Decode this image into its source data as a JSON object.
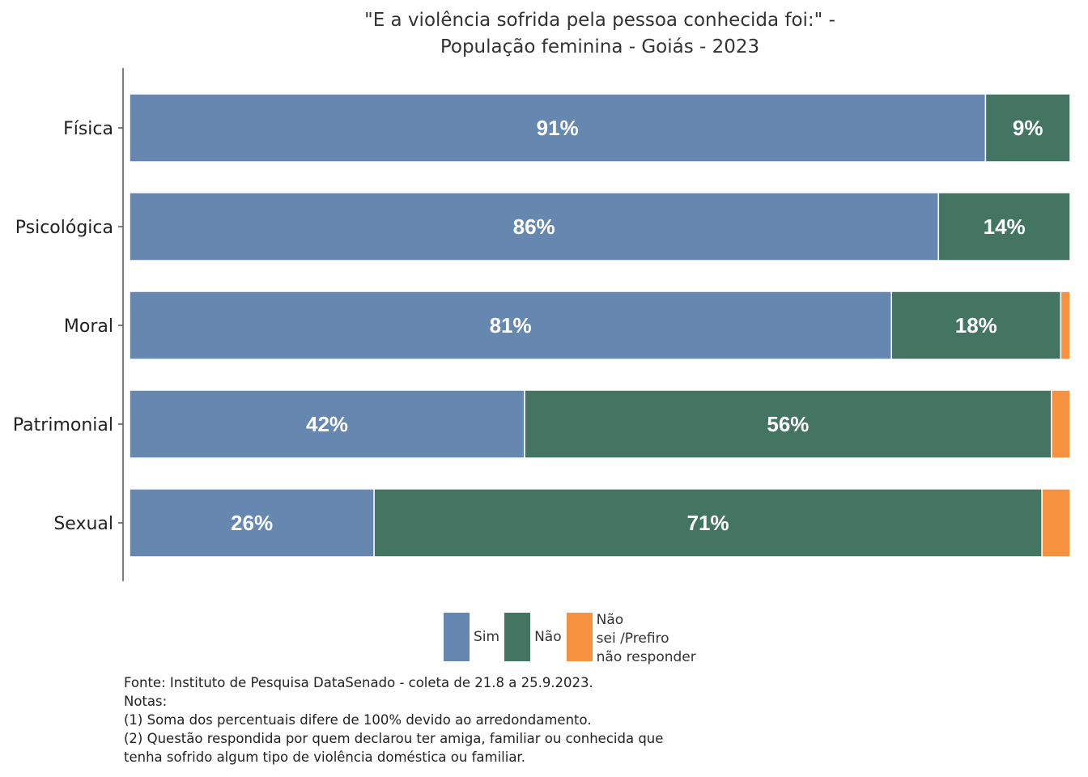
{
  "chart_data": {
    "type": "bar",
    "orientation": "horizontal",
    "stacked": true,
    "title_lines": [
      "\"E a violência sofrida pela pessoa conhecida foi:\" -",
      "População feminina - Goiás - 2023"
    ],
    "categories": [
      "Física",
      "Psicológica",
      "Moral",
      "Patrimonial",
      "Sexual"
    ],
    "series": [
      {
        "name": "Sim",
        "color": "#6688b0",
        "values": [
          91,
          86,
          81,
          42,
          26
        ],
        "labels": [
          "91%",
          "86%",
          "81%",
          "42%",
          "26%"
        ]
      },
      {
        "name": "Não",
        "color": "#447563",
        "values": [
          9,
          14,
          18,
          56,
          71
        ],
        "labels": [
          "9%",
          "14%",
          "18%",
          "56%",
          "71%"
        ]
      },
      {
        "name": "Não sei /Prefiro não responder",
        "color": "#f6923f",
        "values": [
          0,
          0,
          1,
          2,
          3
        ],
        "labels": [
          "",
          "",
          "",
          "",
          ""
        ]
      }
    ],
    "xlim": [
      0,
      100
    ],
    "grid": false,
    "legend_position": "bottom"
  },
  "legend": {
    "sim": "Sim",
    "nao": "Não",
    "nao_sei_lines": [
      "Não",
      "sei /Prefiro",
      "não responder"
    ]
  },
  "notes": [
    "Fonte: Instituto de Pesquisa DataSenado - coleta de 21.8 a 25.9.2023.",
    "Notas:",
    "(1) Soma dos percentuais difere de 100% devido ao arredondamento.",
    "(2) Questão respondida por quem declarou ter amiga, familiar ou conhecida que",
    "tenha sofrido algum tipo de violência doméstica ou familiar."
  ]
}
